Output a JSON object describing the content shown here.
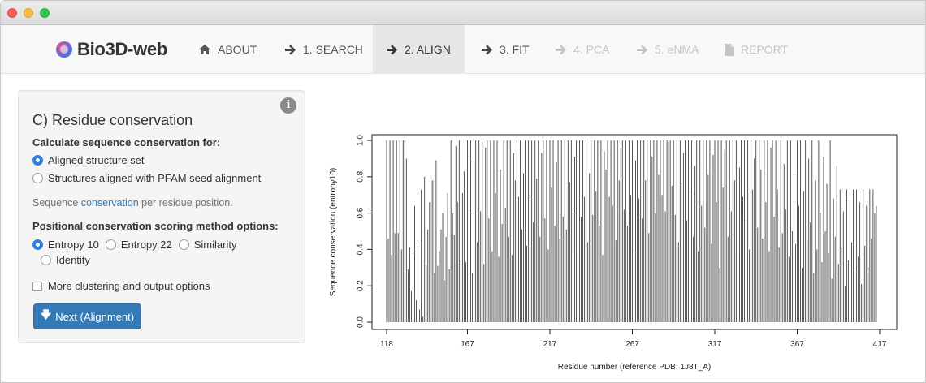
{
  "window": {
    "controls": [
      "close",
      "minimize",
      "maximize"
    ]
  },
  "navbar": {
    "brand": "Bio3D-web",
    "items": [
      {
        "label": "ABOUT",
        "icon": "home-icon",
        "state": "normal"
      },
      {
        "label": "1. SEARCH",
        "icon": "arrow-right-icon",
        "state": "normal"
      },
      {
        "label": "2. ALIGN",
        "icon": "arrow-right-icon",
        "state": "active"
      },
      {
        "label": "3. FIT",
        "icon": "arrow-right-icon",
        "state": "normal"
      },
      {
        "label": "4. PCA",
        "icon": "arrow-right-icon",
        "state": "disabled"
      },
      {
        "label": "5. eNMA",
        "icon": "arrow-right-icon",
        "state": "disabled"
      },
      {
        "label": "REPORT",
        "icon": "file-icon",
        "state": "disabled"
      }
    ]
  },
  "panel": {
    "title": "C) Residue conservation",
    "calc_label": "Calculate sequence conservation for:",
    "calc_options": [
      {
        "label": "Aligned structure set",
        "selected": true
      },
      {
        "label": "Structures aligned with PFAM seed alignment",
        "selected": false
      }
    ],
    "help_prefix": "Sequence ",
    "help_link": "conservation",
    "help_suffix": " per residue position.",
    "method_label": "Positional conservation scoring method options:",
    "method_options": [
      {
        "label": "Entropy 10",
        "selected": true
      },
      {
        "label": "Entropy 22",
        "selected": false
      },
      {
        "label": "Similarity",
        "selected": false
      },
      {
        "label": "Identity",
        "selected": false
      }
    ],
    "more_options_label": "More clustering and output options",
    "more_options_checked": false,
    "next_button": "Next (Alignment)",
    "accent_color": "#337ab7"
  },
  "chart_data": {
    "type": "bar",
    "style": "histogram-lines",
    "xlabel": "Residue number (reference PDB: 1J8T_A)",
    "ylabel": "Sequence conservation (entropy10)",
    "xlim": [
      118,
      424
    ],
    "ylim": [
      0,
      1
    ],
    "x_ticks": [
      118,
      167,
      217,
      267,
      317,
      367,
      417
    ],
    "y_ticks": [
      "0.0",
      "0.2",
      "0.4",
      "0.6",
      "0.8",
      "1.0"
    ],
    "x_start": 118,
    "values": [
      1.0,
      0.46,
      1.0,
      0.37,
      1.0,
      0.49,
      1.0,
      0.49,
      1.0,
      0.4,
      1.0,
      1.0,
      0.9,
      0.29,
      0.41,
      0.17,
      0.36,
      0.64,
      0.12,
      0.42,
      0.07,
      0.73,
      0.03,
      0.8,
      0.31,
      0.51,
      0.66,
      0.78,
      0.78,
      0.27,
      0.89,
      0.31,
      0.39,
      0.51,
      0.6,
      0.23,
      0.47,
      0.71,
      0.29,
      1.0,
      0.6,
      0.48,
      0.97,
      0.66,
      1.0,
      0.34,
      0.71,
      0.83,
      0.33,
      1.0,
      0.6,
      1.0,
      0.27,
      0.89,
      1.0,
      0.44,
      1.0,
      0.61,
      0.99,
      0.32,
      0.96,
      1.0,
      0.57,
      1.0,
      0.39,
      1.0,
      0.71,
      1.0,
      0.36,
      0.84,
      0.54,
      1.0,
      0.63,
      1.0,
      0.47,
      1.0,
      0.37,
      0.93,
      0.78,
      1.0,
      0.69,
      1.0,
      0.51,
      0.82,
      1.0,
      0.42,
      1.0,
      0.67,
      1.0,
      0.55,
      1.0,
      0.79,
      1.0,
      0.47,
      0.93,
      1.0,
      0.57,
      1.0,
      0.4,
      1.0,
      0.74,
      1.0,
      0.53,
      0.88,
      1.0,
      0.46,
      1.0,
      0.58,
      1.0,
      0.51,
      1.0,
      0.77,
      1.0,
      0.6,
      0.91,
      1.0,
      0.38,
      1.0,
      0.58,
      1.0,
      0.69,
      1.0,
      0.44,
      0.82,
      1.0,
      0.59,
      1.0,
      0.72,
      1.0,
      0.53,
      1.0,
      0.37,
      0.94,
      0.84,
      1.0,
      0.69,
      1.0,
      0.64,
      1.0,
      0.45,
      1.0,
      0.78,
      0.96,
      1.0,
      0.62,
      1.0,
      0.53,
      1.0,
      0.7,
      1.0,
      0.39,
      0.89,
      1.0,
      0.68,
      1.0,
      0.57,
      1.0,
      0.78,
      1.0,
      0.49,
      1.0,
      0.91,
      1.0,
      0.6,
      1.0,
      0.81,
      1.0,
      0.7,
      1.0,
      0.61,
      1.0,
      0.99,
      1.0,
      0.75,
      1.0,
      0.59,
      1.0,
      0.44,
      1.0,
      0.77,
      0.93,
      1.0,
      0.56,
      1.0,
      0.72,
      1.0,
      0.47,
      0.86,
      1.0,
      0.39,
      1.0,
      0.64,
      1.0,
      0.52,
      1.0,
      0.81,
      1.0,
      0.43,
      0.92,
      1.0,
      0.66,
      1.0,
      0.3,
      1.0,
      0.74,
      0.95,
      1.0,
      0.47,
      1.0,
      0.61,
      1.0,
      0.78,
      1.0,
      0.38,
      0.85,
      1.0,
      0.69,
      1.0,
      0.56,
      1.0,
      0.4,
      1.0,
      0.73,
      0.9,
      1.0,
      0.52,
      1.0,
      0.84,
      0.46,
      1.0,
      0.66,
      1.0,
      0.39,
      0.96,
      1.0,
      0.58,
      1.0,
      0.73,
      0.41,
      1.0,
      0.49,
      0.87,
      0.62,
      1.0,
      0.36,
      1.0,
      0.5,
      0.81,
      0.43,
      1.0,
      0.64,
      1.0,
      0.3,
      0.72,
      1.0,
      0.45,
      0.9,
      0.55,
      1.0,
      0.27,
      0.78,
      0.4,
      1.0,
      0.6,
      0.33,
      0.91,
      0.5,
      0.76,
      0.38,
      1.0,
      0.24,
      0.68,
      0.47,
      0.86,
      0.32,
      0.73,
      0.41,
      0.61,
      0.2,
      0.73,
      0.34,
      0.69,
      0.44,
      0.73,
      0.28,
      0.73,
      0.36,
      0.66,
      0.21,
      0.73,
      0.42,
      0.64,
      0.3,
      0.73,
      0.46,
      0.73,
      0.6,
      0.64
    ]
  }
}
